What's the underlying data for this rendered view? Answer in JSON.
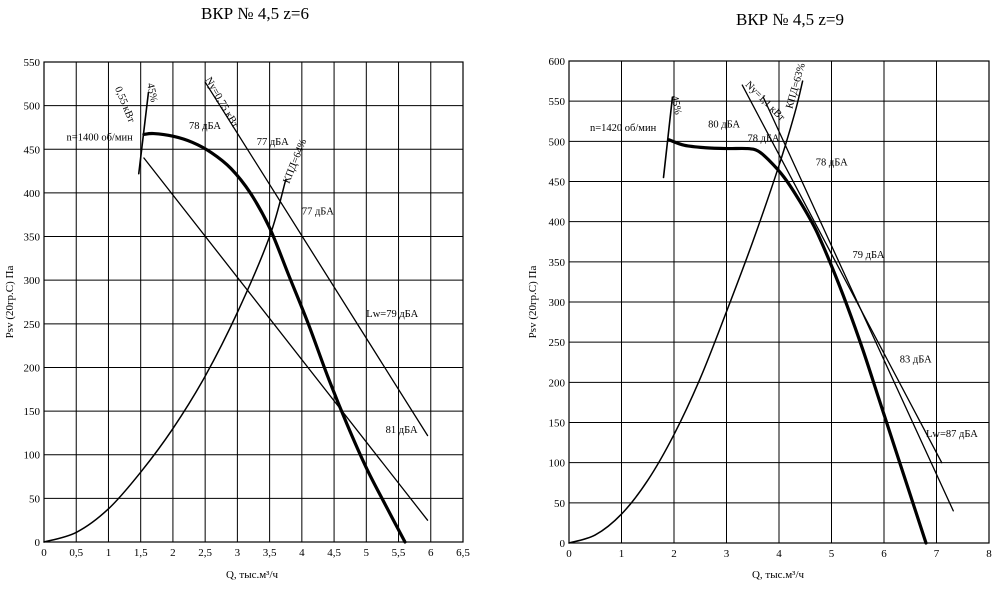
{
  "chart_data": [
    {
      "type": "line",
      "title": "ВКР № 4,5 z=6",
      "xlabel": "Q, тыс.м³/ч",
      "ylabel": "Psv (20гр.С) Па",
      "xlim": [
        0,
        6.5
      ],
      "ylim": [
        0,
        550
      ],
      "xticks": [
        0,
        0.5,
        1,
        1.5,
        2,
        2.5,
        3,
        3.5,
        4,
        4.5,
        5,
        5.5,
        6,
        6.5
      ],
      "xtick_labels": [
        "0",
        "0,5",
        "1",
        "1,5",
        "2",
        "2,5",
        "3",
        "3,5",
        "4",
        "4,5",
        "5",
        "5,5",
        "6",
        "6,5"
      ],
      "yticks": [
        0,
        50,
        100,
        150,
        200,
        250,
        300,
        350,
        400,
        450,
        500,
        550
      ],
      "grid": true,
      "series": [
        {
          "kind": "pressure",
          "x": [
            1.55,
            1.7,
            2.0,
            2.3,
            2.6,
            2.9,
            3.2,
            3.5,
            3.8,
            4.1,
            4.4,
            4.7,
            5.0,
            5.3,
            5.6
          ],
          "y": [
            467,
            468,
            465,
            458,
            446,
            428,
            400,
            360,
            305,
            250,
            190,
            135,
            85,
            42,
            0
          ]
        },
        {
          "kind": "line",
          "x": [
            1.55,
            5.95
          ],
          "y": [
            440,
            25
          ]
        },
        {
          "kind": "power",
          "x": [
            2.5,
            5.95
          ],
          "y": [
            527,
            122
          ]
        },
        {
          "kind": "efficiency",
          "x": [
            0,
            0.5,
            1.0,
            1.5,
            2.0,
            2.5,
            3.0,
            3.5,
            3.75
          ],
          "y": [
            0,
            11,
            38,
            80,
            130,
            190,
            263,
            350,
            415
          ]
        },
        {
          "kind": "pointer",
          "x": [
            1.47,
            1.62
          ],
          "y": [
            422,
            515
          ]
        }
      ],
      "annotations": [
        {
          "text": "n=1400 об/мин",
          "x": 0.35,
          "y": 460
        },
        {
          "text": "0,55 кВт",
          "x": 1.1,
          "y": 520
        },
        {
          "text": "45%",
          "x": 1.6,
          "y": 525
        },
        {
          "text": "Ny=0,75 кВт",
          "x": 2.5,
          "y": 530
        },
        {
          "text": "78 дБА",
          "x": 2.25,
          "y": 473
        },
        {
          "text": "77 дБА",
          "x": 3.3,
          "y": 455
        },
        {
          "text": "КПД=64%",
          "x": 3.8,
          "y": 410
        },
        {
          "text": "77 дБА",
          "x": 4.0,
          "y": 375
        },
        {
          "text": "Lw=79 дБА",
          "x": 5.0,
          "y": 258
        },
        {
          "text": "81 дБА",
          "x": 5.3,
          "y": 125
        }
      ]
    },
    {
      "type": "line",
      "title": "ВКР № 4,5 z=9",
      "xlabel": "Q, тыс.м³/ч",
      "ylabel": "Psv (20гр.С) Па",
      "xlim": [
        0,
        8
      ],
      "ylim": [
        0,
        600
      ],
      "xticks": [
        0,
        1,
        2,
        3,
        4,
        5,
        6,
        7,
        8
      ],
      "xtick_labels": [
        "0",
        "1",
        "2",
        "3",
        "4",
        "5",
        "6",
        "7",
        "8"
      ],
      "yticks": [
        0,
        50,
        100,
        150,
        200,
        250,
        300,
        350,
        400,
        450,
        500,
        550,
        600
      ],
      "grid": true,
      "series": [
        {
          "kind": "pressure",
          "x": [
            1.9,
            2.2,
            2.6,
            3.0,
            3.4,
            3.6,
            3.8,
            4.1,
            4.4,
            4.7,
            5.0,
            5.3,
            5.6,
            5.9,
            6.2,
            6.5,
            6.8
          ],
          "y": [
            502,
            495,
            492,
            491,
            491,
            488,
            477,
            455,
            425,
            390,
            345,
            295,
            240,
            180,
            120,
            60,
            0
          ]
        },
        {
          "kind": "line",
          "x": [
            3.7,
            7.32
          ],
          "y": [
            555,
            40
          ]
        },
        {
          "kind": "power",
          "x": [
            3.3,
            7.1
          ],
          "y": [
            570,
            100
          ]
        },
        {
          "kind": "efficiency",
          "x": [
            0,
            0.5,
            1.0,
            1.5,
            2.0,
            2.5,
            3.0,
            3.5,
            4.0,
            4.3,
            4.45
          ],
          "y": [
            0,
            10,
            36,
            78,
            135,
            205,
            288,
            375,
            470,
            535,
            575
          ]
        },
        {
          "kind": "pointer",
          "x": [
            1.8,
            1.97
          ],
          "y": [
            455,
            555
          ]
        }
      ],
      "annotations": [
        {
          "text": "n=1420 об/мин",
          "x": 0.4,
          "y": 513
        },
        {
          "text": "45%",
          "x": 1.95,
          "y": 556
        },
        {
          "text": "Ny=1,1 кВт",
          "x": 3.35,
          "y": 570
        },
        {
          "text": "КПД=63%",
          "x": 4.25,
          "y": 540
        },
        {
          "text": "80 дБА",
          "x": 2.65,
          "y": 517
        },
        {
          "text": "78 дБА",
          "x": 3.4,
          "y": 500
        },
        {
          "text": "78 дБА",
          "x": 4.7,
          "y": 470
        },
        {
          "text": "79 дБА",
          "x": 5.4,
          "y": 355
        },
        {
          "text": "83 дБА",
          "x": 6.3,
          "y": 225
        },
        {
          "text": "Lw=87 дБА",
          "x": 6.8,
          "y": 132
        }
      ]
    }
  ]
}
